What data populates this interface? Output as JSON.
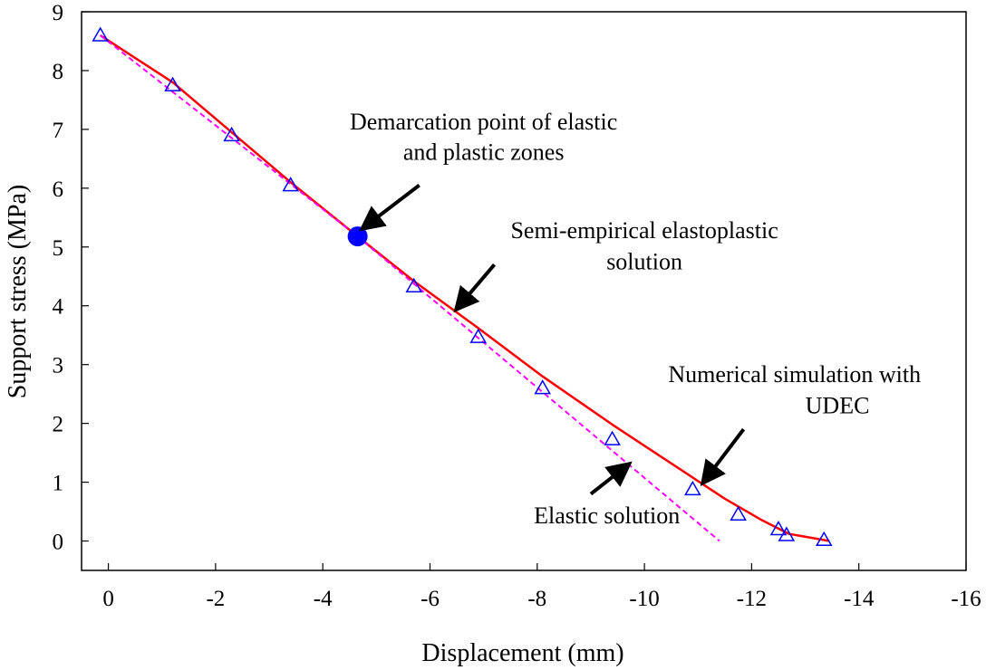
{
  "chart_data": {
    "type": "line",
    "xlabel": "Displacement (mm)",
    "ylabel": "Support stress (MPa)",
    "xlim": [
      0.5,
      -16
    ],
    "ylim": [
      -0.5,
      9
    ],
    "x_ticks": [
      0,
      -2,
      -4,
      -6,
      -8,
      -10,
      -12,
      -14,
      -16
    ],
    "x_tick_labels": [
      "0",
      "-2",
      "-4",
      "-6",
      "-8",
      "-10",
      "-12",
      "-14",
      "-16"
    ],
    "y_ticks": [
      0,
      1,
      2,
      3,
      4,
      5,
      6,
      7,
      8,
      9
    ],
    "y_tick_labels": [
      "0",
      "1",
      "2",
      "3",
      "4",
      "5",
      "6",
      "7",
      "8",
      "9"
    ],
    "grid": false,
    "legend": "none",
    "series": [
      {
        "style": "solid line",
        "color": "#ff0000",
        "x": [
          0.15,
          -1.2,
          -2.3,
          -3.4,
          -4.65,
          -5.7,
          -6.9,
          -8.1,
          -9.4,
          -10.9,
          -11.5,
          -12.2,
          -12.7,
          -13.45
        ],
        "y": [
          8.6,
          7.8,
          6.95,
          6.1,
          5.18,
          4.42,
          3.62,
          2.8,
          1.98,
          1.08,
          0.72,
          0.35,
          0.12,
          0.0
        ]
      },
      {
        "style": "dashed line",
        "color": "#ff00ff",
        "x": [
          0.15,
          -4.65,
          -11.4
        ],
        "y": [
          8.6,
          5.18,
          0.0
        ]
      },
      {
        "style": "triangle markers",
        "color": "#0000ff",
        "x": [
          0.15,
          -1.2,
          -2.3,
          -3.4,
          -5.7,
          -6.9,
          -8.1,
          -9.4,
          -10.9,
          -11.75,
          -12.5,
          -12.65,
          -13.35
        ],
        "y": [
          8.6,
          7.75,
          6.9,
          6.05,
          4.33,
          3.47,
          2.6,
          1.73,
          0.88,
          0.45,
          0.2,
          0.1,
          0.02
        ]
      }
    ],
    "point": {
      "color": "#0000ff",
      "x": -4.65,
      "y": 5.18
    },
    "annotations": [
      {
        "lines": [
          "Demarcation point of elastic",
          "and plastic zones"
        ],
        "text_x": -7.0,
        "text_y": [
          7.0,
          6.48
        ],
        "arrow_from": [
          -5.8,
          6.05
        ],
        "arrow_to": [
          -4.75,
          5.32
        ]
      },
      {
        "lines": [
          "Semi-empirical elastoplastic",
          "solution"
        ],
        "text_x": -10.0,
        "text_y": [
          5.15,
          4.62
        ],
        "arrow_from": [
          -7.2,
          4.7
        ],
        "arrow_to": [
          -6.5,
          3.95
        ]
      },
      {
        "lines": [
          "Numerical simulation with",
          "UDEC"
        ],
        "text_x": [
          -12.8,
          -13.6
        ],
        "text_y": [
          2.7,
          2.17
        ],
        "arrow_from": [
          -11.85,
          1.9
        ],
        "arrow_to": [
          -11.1,
          1.0
        ]
      },
      {
        "lines": [
          "Elastic solution"
        ],
        "text_x": -9.3,
        "text_y": [
          0.3
        ],
        "arrow_from": [
          -9.0,
          0.8
        ],
        "arrow_to": [
          -9.7,
          1.3
        ]
      }
    ]
  }
}
